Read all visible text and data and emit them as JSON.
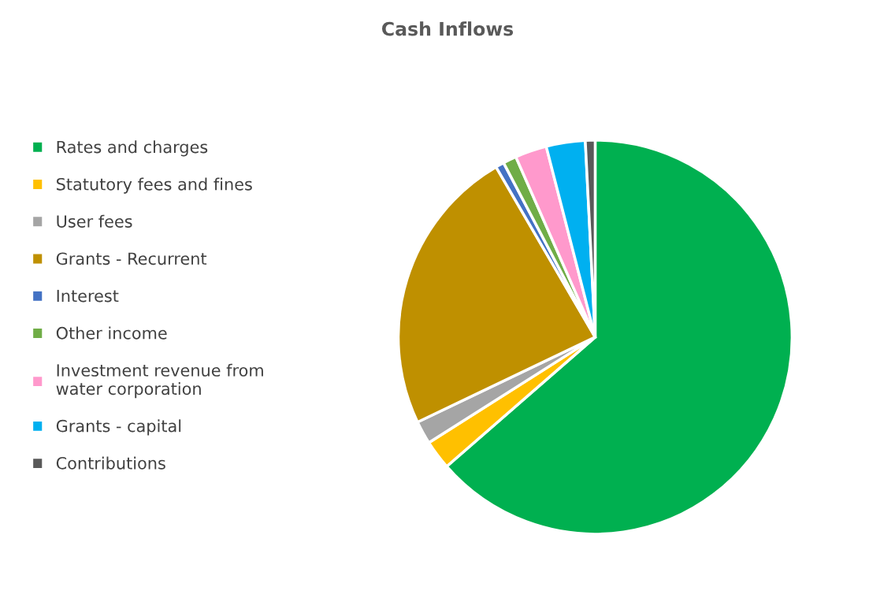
{
  "chart_data": {
    "type": "pie",
    "title": "Cash Inflows",
    "categories": [
      "Rates and charges",
      "Statutory fees and fines",
      "User fees",
      "Grants - Recurrent",
      "Interest",
      "Other income",
      "Investment revenue from\nwater corporation",
      "Grants - capital",
      "Contributions"
    ],
    "values": [
      63.6,
      2.4,
      1.9,
      23.7,
      0.7,
      1.1,
      2.6,
      3.2,
      0.8
    ],
    "colors": [
      "#00b050",
      "#ffc000",
      "#a5a5a5",
      "#bf9000",
      "#4472c4",
      "#70ad47",
      "#ff99cc",
      "#00b0f0",
      "#595959"
    ],
    "legend": "left"
  }
}
